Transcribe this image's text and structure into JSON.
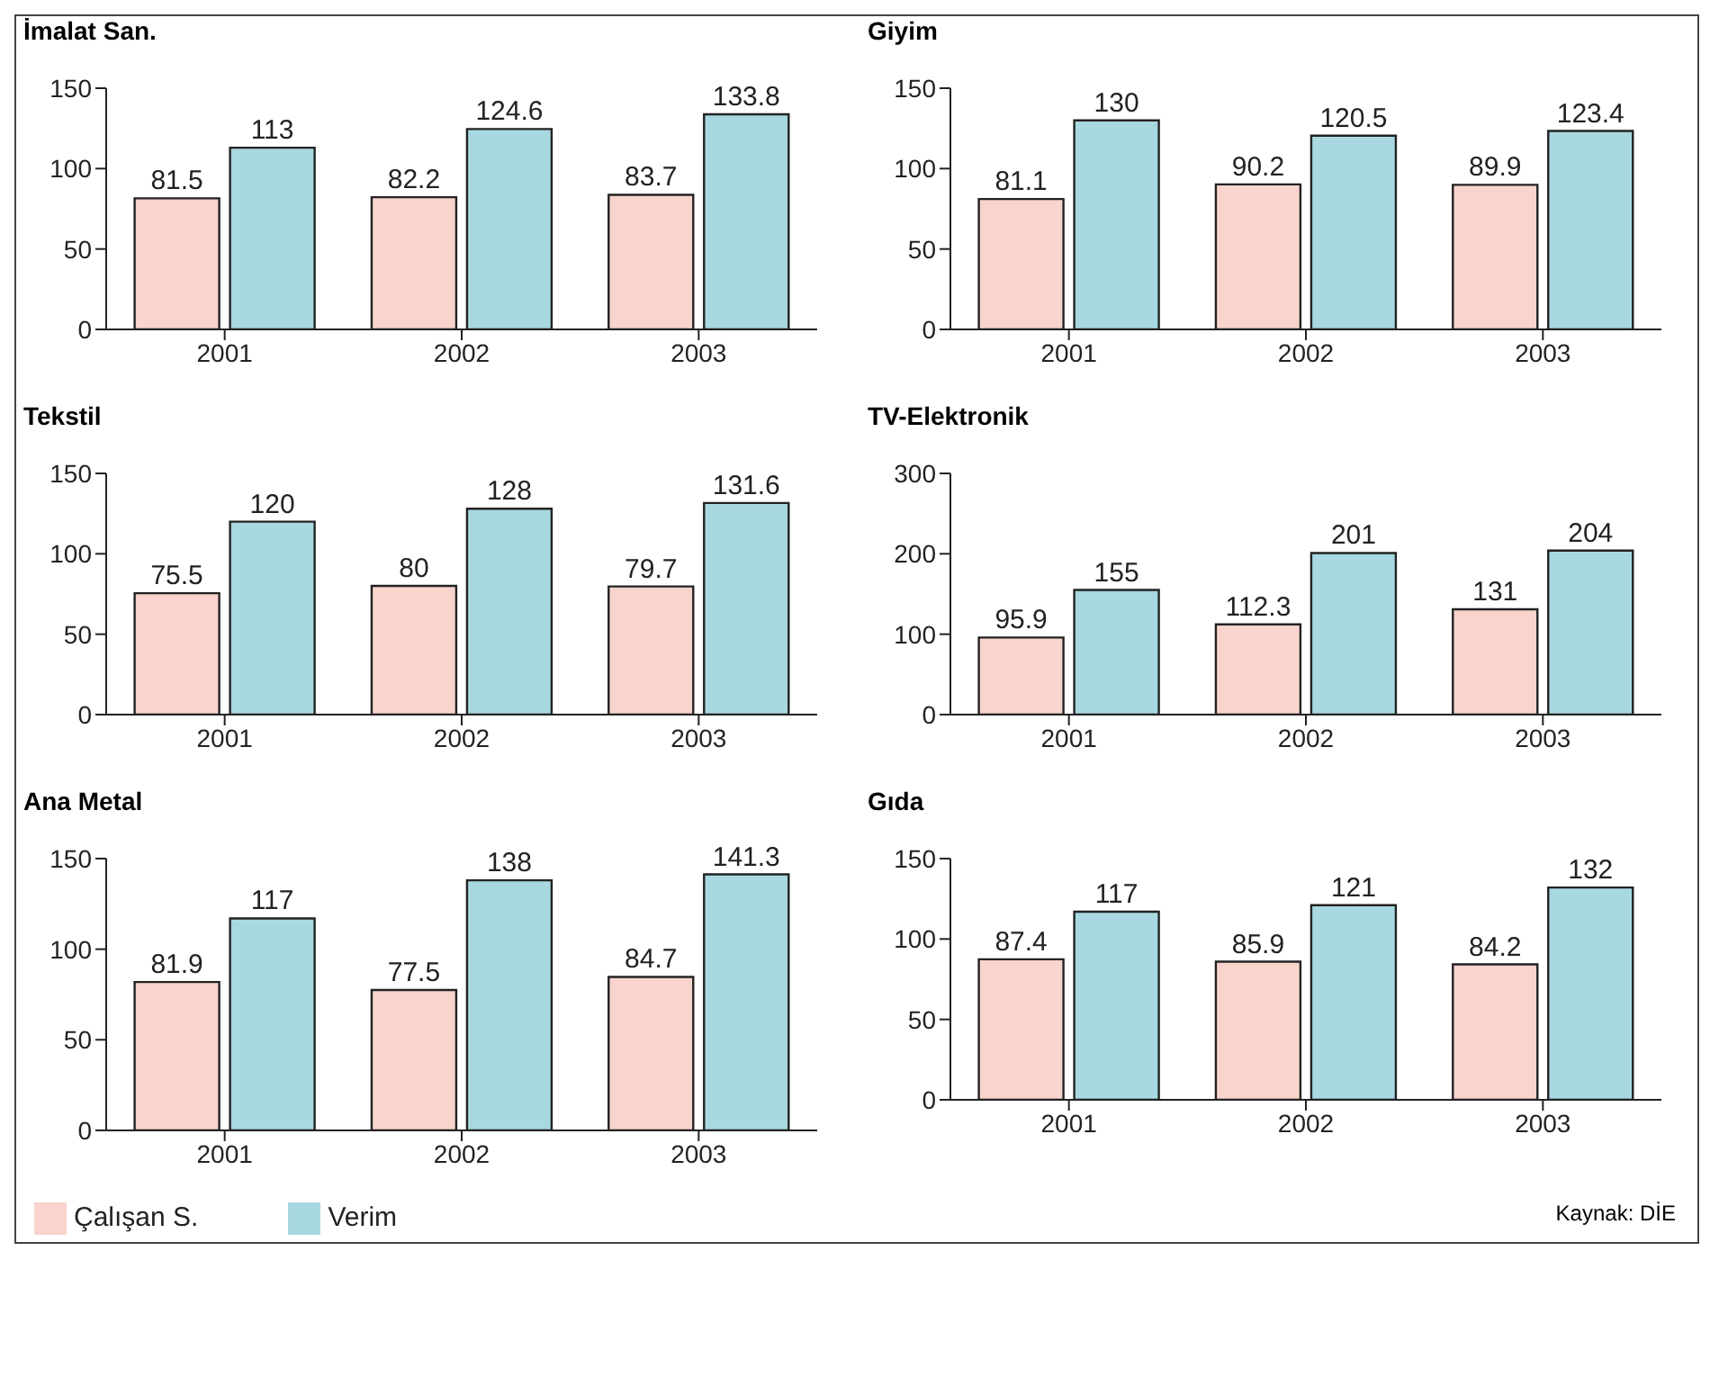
{
  "chart_data": [
    {
      "type": "bar",
      "title": "İmalat San.",
      "categories": [
        "2001",
        "2002",
        "2003"
      ],
      "ylim": [
        0,
        150
      ],
      "yticks": [
        0,
        50,
        100,
        150
      ],
      "data_labels": true,
      "grid": false,
      "series": [
        {
          "color": "#f8d4cc",
          "values": [
            81.5,
            82.2,
            83.7
          ]
        },
        {
          "color": "#a8d8e0",
          "values": [
            113,
            124.6,
            133.8
          ]
        }
      ]
    },
    {
      "type": "bar",
      "title": "Giyim",
      "categories": [
        "2001",
        "2002",
        "2003"
      ],
      "ylim": [
        0,
        150
      ],
      "yticks": [
        0,
        50,
        100,
        150
      ],
      "data_labels": true,
      "grid": false,
      "series": [
        {
          "color": "#f8d4cc",
          "values": [
            81.1,
            90.2,
            89.9
          ]
        },
        {
          "color": "#a8d8e0",
          "values": [
            130,
            120.5,
            123.4
          ]
        }
      ]
    },
    {
      "type": "bar",
      "title": "Tekstil",
      "categories": [
        "2001",
        "2002",
        "2003"
      ],
      "ylim": [
        0,
        150
      ],
      "yticks": [
        0,
        50,
        100,
        150
      ],
      "data_labels": true,
      "grid": false,
      "series": [
        {
          "color": "#f8d4cc",
          "values": [
            75.5,
            80,
            79.7
          ]
        },
        {
          "color": "#a8d8e0",
          "values": [
            120,
            128,
            131.6
          ]
        }
      ]
    },
    {
      "type": "bar",
      "title": "TV-Elektronik",
      "categories": [
        "2001",
        "2002",
        "2003"
      ],
      "ylim": [
        0,
        300
      ],
      "yticks": [
        0,
        100,
        200,
        300
      ],
      "data_labels": true,
      "grid": false,
      "series": [
        {
          "color": "#f8d4cc",
          "values": [
            95.9,
            112.3,
            131
          ]
        },
        {
          "color": "#a8d8e0",
          "values": [
            155,
            201,
            204
          ]
        }
      ]
    },
    {
      "type": "bar",
      "title": "Ana Metal",
      "categories": [
        "2001",
        "2002",
        "2003"
      ],
      "ylim": [
        0,
        150
      ],
      "yticks": [
        0,
        50,
        100,
        150
      ],
      "data_labels": true,
      "grid": false,
      "legend": "bottom left",
      "series": [
        {
          "name": "Çalışan S.",
          "color": "#f8d4cc",
          "values": [
            81.9,
            77.5,
            84.7
          ]
        },
        {
          "name": "Verim",
          "color": "#a8d8e0",
          "values": [
            117,
            138,
            141.3
          ]
        }
      ]
    },
    {
      "type": "bar",
      "title": "Gıda",
      "categories": [
        "2001",
        "2002",
        "2003"
      ],
      "ylim": [
        0,
        150
      ],
      "yticks": [
        0,
        50,
        100,
        150
      ],
      "data_labels": true,
      "grid": false,
      "annotations": [
        "Kaynak: DİE"
      ],
      "series": [
        {
          "color": "#f8d4cc",
          "values": [
            87.4,
            85.9,
            84.2
          ]
        },
        {
          "color": "#a8d8e0",
          "values": [
            117,
            121,
            132
          ]
        }
      ]
    }
  ]
}
